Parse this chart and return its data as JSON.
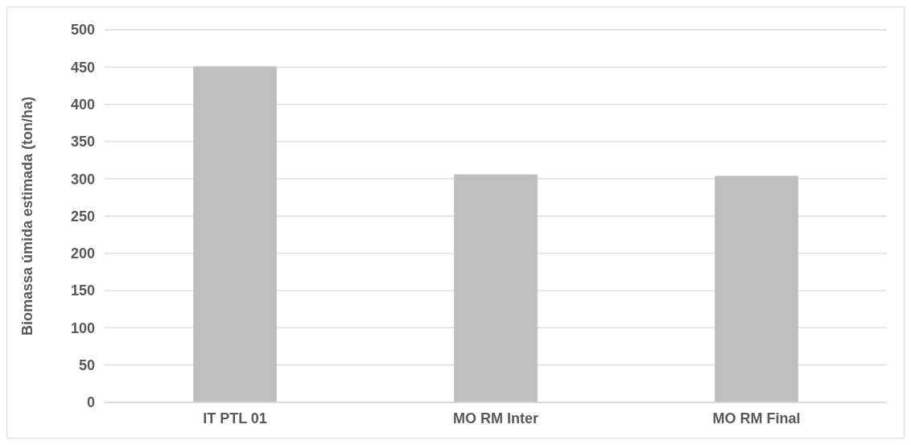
{
  "chart_data": {
    "type": "bar",
    "ylabel": "Biomassa úmida estimada (ton/ha)",
    "categories": [
      "IT PTL 01",
      "MO RM Inter",
      "MO RM Final"
    ],
    "values": [
      451,
      306,
      304
    ],
    "color": "#bfbfbf",
    "ylim": [
      0,
      500
    ],
    "yticks": [
      0,
      50,
      100,
      150,
      200,
      250,
      300,
      350,
      400,
      450,
      500
    ],
    "grid": "y"
  }
}
